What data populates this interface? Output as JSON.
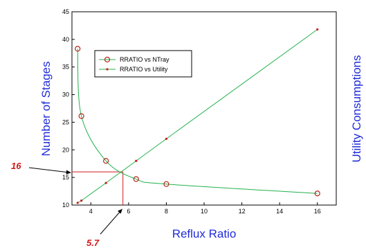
{
  "chart_data": {
    "type": "line",
    "xlabel": "Reflux Ratio",
    "ylabel": "Number of Stages",
    "y2label": "Utility Consumptions",
    "xlim": [
      3,
      17
    ],
    "ylim": [
      10,
      45
    ],
    "xticks": [
      "4",
      "6",
      "8",
      "10",
      "12",
      "14",
      "16"
    ],
    "yticks": [
      "10",
      "15",
      "20",
      "25",
      "30",
      "35",
      "40",
      "45"
    ],
    "legend_position": "top-left",
    "series": [
      {
        "name": "RRATIO vs NTray",
        "marker": "open-circle",
        "color": "#b5261c",
        "line_color": "#22b14c",
        "x": [
          3.3,
          3.5,
          4.8,
          6.4,
          8,
          16
        ],
        "y": [
          38.3,
          26.1,
          18,
          14.7,
          13.8,
          12.1
        ]
      },
      {
        "name": "RRATIO vs Utility",
        "marker": "dot",
        "color": "#d11a1a",
        "line_color": "#22b14c",
        "x": [
          3.3,
          3.5,
          4.8,
          6.4,
          8,
          16
        ],
        "y": [
          10.4,
          10.8,
          14,
          18,
          22,
          41.8
        ]
      }
    ],
    "annotations": [
      {
        "text": "16",
        "x": 3,
        "y": 16
      },
      {
        "text": "5.7",
        "x": 5.7,
        "y": 10
      }
    ]
  },
  "colors": {
    "axis_title": "#1f2bd8",
    "annotation": "#d11a1a",
    "guide_line": "#d11a1a",
    "curve": "#22b14c"
  }
}
